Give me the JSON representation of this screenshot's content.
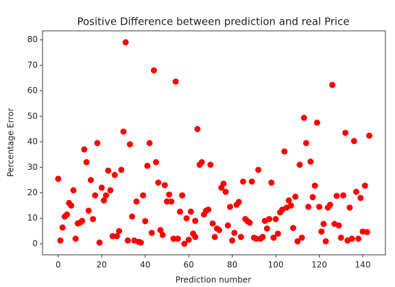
{
  "chart_data": {
    "type": "scatter",
    "title": "Positive Difference between prediction and real Price",
    "x_label": "Prediction number",
    "y_label": "Percentage Error",
    "color": "#ff0000",
    "x": [
      0,
      1,
      2,
      3,
      4,
      5,
      6,
      7,
      8,
      9,
      10,
      11,
      12,
      13,
      14,
      15,
      16,
      17,
      18,
      19,
      20,
      21,
      22,
      23,
      24,
      25,
      26,
      27,
      28,
      29,
      30,
      31,
      32,
      33,
      34,
      35,
      36,
      37,
      38,
      39,
      40,
      41,
      42,
      43,
      44,
      45,
      46,
      47,
      48,
      49,
      50,
      51,
      52,
      53,
      54,
      55,
      56,
      57,
      58,
      59,
      60,
      61,
      62,
      63,
      63,
      64,
      65,
      66,
      67,
      68,
      69,
      70,
      71,
      72,
      73,
      74,
      75,
      76,
      77,
      78,
      79,
      80,
      81,
      82,
      83,
      84,
      85,
      86,
      87,
      88,
      89,
      90,
      91,
      92,
      93,
      94,
      95,
      96,
      97,
      98,
      99,
      100,
      101,
      102,
      103,
      104,
      105,
      106,
      107,
      108,
      109,
      110,
      111,
      112,
      113,
      114,
      115,
      116,
      117,
      118,
      119,
      120,
      121,
      122,
      123,
      124,
      125,
      126,
      127,
      128,
      129,
      130,
      131,
      132,
      133,
      134,
      135,
      136,
      137,
      138,
      139,
      140,
      141,
      142,
      143
    ],
    "values": [
      25.5,
      1.3,
      6.4,
      10.7,
      11.5,
      16,
      15,
      21,
      2,
      8,
      8.3,
      9,
      37,
      32,
      13,
      25,
      9.7,
      19,
      39.5,
      0.5,
      22,
      17,
      19,
      28.7,
      21,
      3,
      27,
      3,
      5,
      29,
      44,
      79,
      1.3,
      39,
      10.7,
      1.3,
      16.6,
      0.8,
      0.5,
      19,
      8.9,
      30.6,
      39.5,
      4.3,
      68,
      32,
      24,
      5.4,
      3.5,
      23,
      16.6,
      19.3,
      16.6,
      2,
      63.6,
      2,
      12.6,
      19,
      0,
      10,
      1.6,
      12.6,
      4,
      2.7,
      9,
      45,
      31,
      32,
      11.5,
      13,
      13.4,
      31,
      8,
      2.7,
      6,
      5.4,
      22,
      23.6,
      20.4,
      7.2,
      14.5,
      1.3,
      4.3,
      15.3,
      16.4,
      2.7,
      24.4,
      9.7,
      8.9,
      8.3,
      24.4,
      2.4,
      2,
      29,
      2,
      2.7,
      9,
      6,
      9.7,
      24,
      2.4,
      9.7,
      4,
      12.3,
      13.4,
      36.2,
      14.2,
      17,
      15,
      6.2,
      18.5,
      1,
      31,
      2.4,
      49.4,
      39.5,
      14.5,
      32.2,
      18.3,
      22.8,
      47.5,
      14.5,
      4.8,
      7.8,
      1,
      14.2,
      15.3,
      62.3,
      7.8,
      18.8,
      7.2,
      2.4,
      19,
      43.5,
      1.3,
      14.2,
      2,
      40.3,
      20.4,
      2,
      18,
      4.8,
      22.8,
      4.6,
      42.4
    ],
    "xlim": [
      -7.2,
      150.4
    ],
    "ylim": [
      -4.3,
      83.5
    ],
    "xticks": [
      0,
      20,
      40,
      60,
      80,
      100,
      120,
      140
    ],
    "yticks": [
      0,
      10,
      20,
      30,
      40,
      50,
      60,
      70,
      80
    ]
  }
}
